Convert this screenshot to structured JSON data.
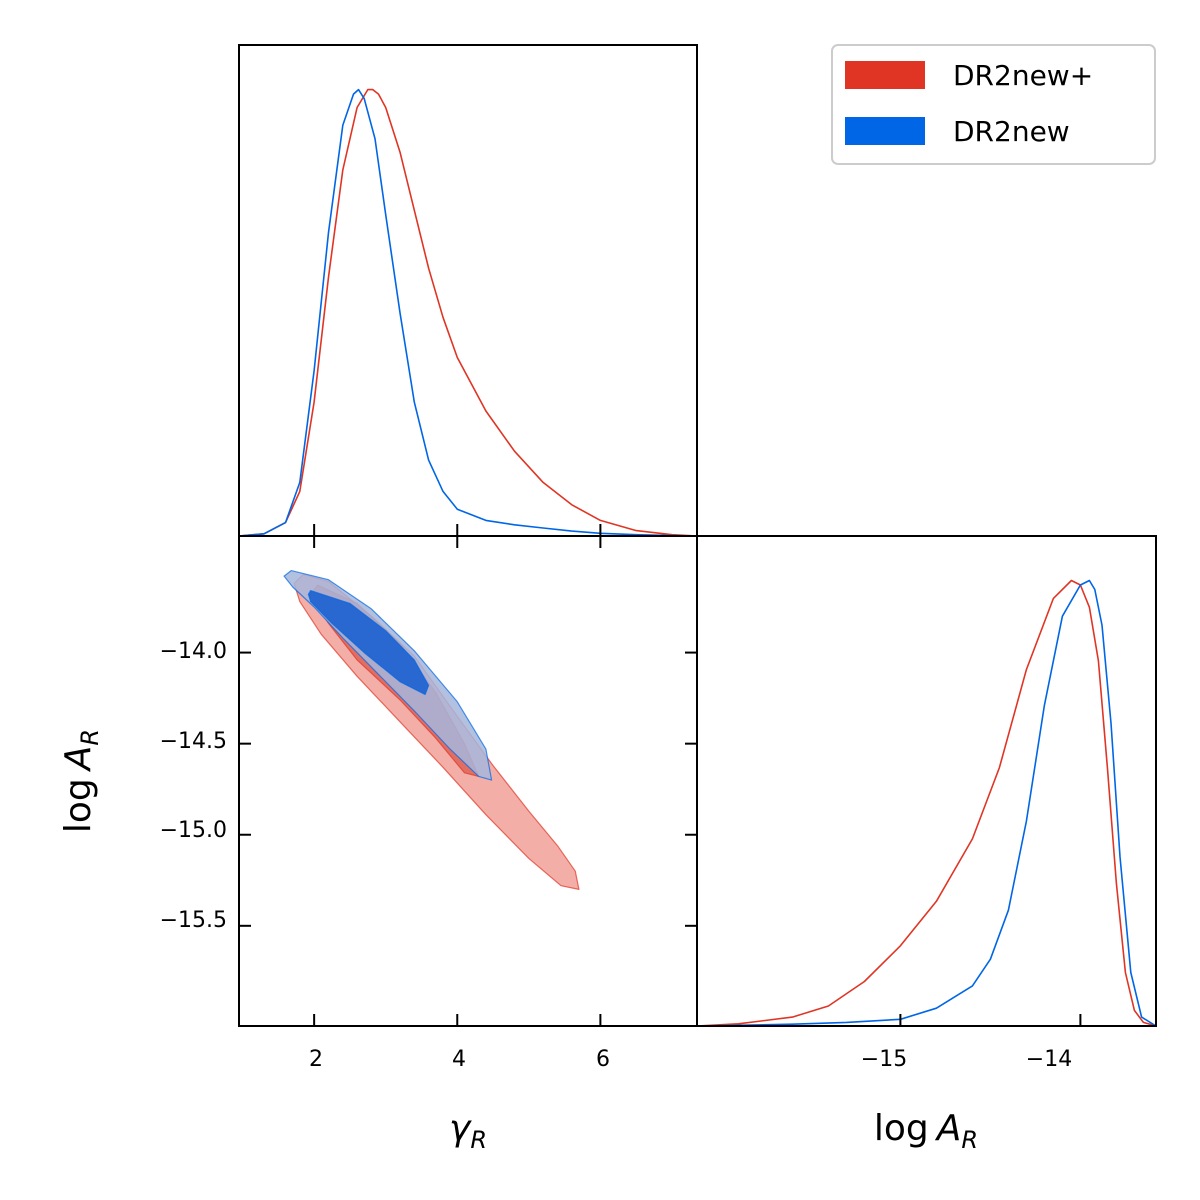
{
  "colors": {
    "dr2new_plus": "#e03524",
    "dr2new": "#0066e6",
    "dr2new_plus_fill_outer": "#f2aaa3",
    "dr2new_plus_fill_inner": "#e06a5f",
    "dr2new_fill_outer": "#a6b6dc",
    "dr2new_fill_inner": "#2164d0"
  },
  "legend": {
    "placement": "top-right",
    "entries": [
      "DR2new+",
      "DR2new"
    ]
  },
  "axes": {
    "gamma_label": "γ",
    "gamma_subscript": "R",
    "logA_prefix": "log",
    "logA_symbol": "A",
    "logA_subscript": "R",
    "gamma_ticks": [
      "2",
      "4",
      "6"
    ],
    "logA_y_ticks": [
      "−14.0",
      "−14.5",
      "−15.0",
      "−15.5"
    ],
    "logA_x_ticks": [
      "−15",
      "−14"
    ]
  },
  "chart_data": [
    {
      "type": "line",
      "panel": "1D marginal of gamma_R",
      "xlim": [
        0.95,
        7.35
      ],
      "ylim": [
        0,
        1.1
      ],
      "x_ticks": [
        2,
        4,
        6
      ],
      "series": [
        {
          "name": "DR2new+",
          "x": [
            0.95,
            1.3,
            1.6,
            1.8,
            2.0,
            2.2,
            2.4,
            2.6,
            2.75,
            2.82,
            2.9,
            3.0,
            3.2,
            3.4,
            3.6,
            3.8,
            4.0,
            4.4,
            4.8,
            5.2,
            5.6,
            6.0,
            6.5,
            7.0,
            7.35
          ],
          "y": [
            0.0,
            0.005,
            0.03,
            0.1,
            0.3,
            0.58,
            0.82,
            0.96,
            1.0,
            1.0,
            0.99,
            0.96,
            0.86,
            0.73,
            0.6,
            0.49,
            0.4,
            0.28,
            0.19,
            0.12,
            0.07,
            0.035,
            0.012,
            0.003,
            0.0
          ]
        },
        {
          "name": "DR2new",
          "x": [
            0.95,
            1.3,
            1.6,
            1.8,
            2.0,
            2.2,
            2.4,
            2.55,
            2.62,
            2.7,
            2.85,
            3.0,
            3.2,
            3.4,
            3.6,
            3.8,
            4.0,
            4.4,
            4.8,
            5.2,
            5.6,
            6.0,
            6.5,
            7.0,
            7.35
          ],
          "y": [
            0.0,
            0.005,
            0.03,
            0.12,
            0.37,
            0.68,
            0.92,
            0.99,
            1.0,
            0.98,
            0.89,
            0.72,
            0.5,
            0.3,
            0.17,
            0.1,
            0.06,
            0.035,
            0.025,
            0.018,
            0.011,
            0.006,
            0.003,
            0.001,
            0.0
          ]
        }
      ]
    },
    {
      "type": "area",
      "panel": "2D contours, gamma_R vs log A_R",
      "xlabel": "γ_R",
      "ylabel": "log A_R",
      "xlim": [
        0.95,
        7.35
      ],
      "ylim": [
        -16.05,
        -13.36
      ],
      "x_ticks": [
        2,
        4,
        6
      ],
      "y_ticks": [
        -14.0,
        -14.5,
        -15.0,
        -15.5
      ],
      "series": [
        {
          "name": "DR2new+ 95%",
          "x": [
            1.85,
            2.2,
            2.8,
            3.4,
            4.0,
            4.5,
            5.0,
            5.4,
            5.65,
            5.7,
            5.45,
            5.0,
            4.4,
            3.8,
            3.2,
            2.6,
            2.1,
            1.8,
            1.72,
            1.85
          ],
          "y": [
            -13.57,
            -13.61,
            -13.8,
            -14.02,
            -14.35,
            -14.62,
            -14.87,
            -15.06,
            -15.2,
            -15.3,
            -15.28,
            -15.13,
            -14.89,
            -14.63,
            -14.38,
            -14.13,
            -13.9,
            -13.72,
            -13.62,
            -13.57
          ]
        },
        {
          "name": "DR2new+ 68%",
          "x": [
            2.05,
            2.6,
            3.2,
            3.7,
            4.1,
            4.3,
            4.1,
            3.7,
            3.2,
            2.6,
            2.2,
            1.95,
            2.05
          ],
          "y": [
            -13.63,
            -13.73,
            -13.95,
            -14.22,
            -14.5,
            -14.68,
            -14.66,
            -14.47,
            -14.26,
            -14.04,
            -13.84,
            -13.68,
            -13.63
          ]
        },
        {
          "name": "DR2new 95%",
          "x": [
            1.68,
            2.2,
            2.8,
            3.4,
            4.0,
            4.4,
            4.48,
            4.3,
            3.9,
            3.4,
            2.9,
            2.4,
            2.0,
            1.7,
            1.58,
            1.68
          ],
          "y": [
            -13.55,
            -13.6,
            -13.76,
            -13.99,
            -14.27,
            -14.53,
            -14.7,
            -14.68,
            -14.53,
            -14.32,
            -14.12,
            -13.92,
            -13.75,
            -13.64,
            -13.58,
            -13.55
          ]
        },
        {
          "name": "DR2new 68%",
          "x": [
            1.95,
            2.5,
            3.0,
            3.4,
            3.6,
            3.55,
            3.2,
            2.7,
            2.25,
            1.95,
            1.92,
            1.95
          ],
          "y": [
            -13.66,
            -13.73,
            -13.88,
            -14.04,
            -14.18,
            -14.23,
            -14.16,
            -14.0,
            -13.84,
            -13.72,
            -13.68,
            -13.66
          ]
        }
      ]
    },
    {
      "type": "line",
      "panel": "1D marginal of log A_R",
      "xlabel": "log A_R",
      "xlim": [
        -16.13,
        -13.58
      ],
      "ylim": [
        0,
        1.1
      ],
      "x_ticks": [
        -15,
        -14
      ],
      "series": [
        {
          "name": "DR2new+",
          "x": [
            -16.13,
            -15.9,
            -15.6,
            -15.4,
            -15.2,
            -15.0,
            -14.8,
            -14.6,
            -14.45,
            -14.3,
            -14.15,
            -14.05,
            -14.0,
            -13.95,
            -13.9,
            -13.85,
            -13.8,
            -13.75,
            -13.7,
            -13.65,
            -13.58
          ],
          "y": [
            0.0,
            0.005,
            0.02,
            0.045,
            0.1,
            0.18,
            0.28,
            0.42,
            0.58,
            0.8,
            0.96,
            1.0,
            0.99,
            0.94,
            0.82,
            0.58,
            0.32,
            0.12,
            0.035,
            0.008,
            0.0
          ]
        },
        {
          "name": "DR2new",
          "x": [
            -16.13,
            -15.6,
            -15.3,
            -15.0,
            -14.8,
            -14.6,
            -14.5,
            -14.4,
            -14.3,
            -14.2,
            -14.1,
            -14.0,
            -13.95,
            -13.92,
            -13.88,
            -13.83,
            -13.78,
            -13.72,
            -13.66,
            -13.58
          ],
          "y": [
            0.0,
            0.004,
            0.008,
            0.015,
            0.04,
            0.09,
            0.15,
            0.26,
            0.46,
            0.72,
            0.92,
            0.99,
            1.0,
            0.98,
            0.9,
            0.68,
            0.38,
            0.12,
            0.02,
            0.0
          ]
        }
      ]
    }
  ]
}
